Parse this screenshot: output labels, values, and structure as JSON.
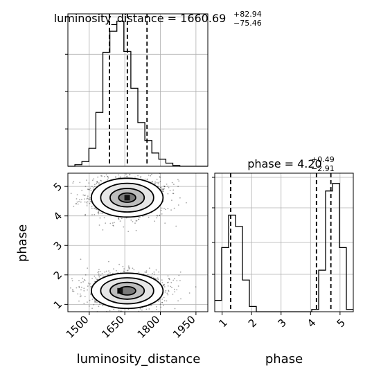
{
  "chart_data": [
    {
      "type": "histogram",
      "panel": "luminosity_distance-marginal",
      "title": {
        "prefix": "luminosity_distance = 1660.69",
        "upper": "+82.94",
        "lower": "−75.46"
      },
      "xlim": [
        1410,
        2000
      ],
      "bins": {
        "edges_start": 1410,
        "width": 29.5,
        "values": [
          0,
          2,
          6,
          23,
          69,
          146,
          173,
          186,
          147,
          100,
          56,
          33,
          17,
          9,
          4,
          1,
          0,
          0,
          0,
          0
        ]
      },
      "quantile_lines": [
        1585.2,
        1660.69,
        1743.6
      ],
      "grid": true
    },
    {
      "type": "scatter-density",
      "panel": "luminosity_distance-vs-phase",
      "xlabel": "luminosity_distance",
      "ylabel": "phase",
      "xlim": [
        1410,
        2000
      ],
      "ylim": [
        0.75,
        5.45
      ],
      "xticks": [
        "1500",
        "1650",
        "1800",
        "1950"
      ],
      "xtick_values": [
        1500,
        1650,
        1800,
        1950
      ],
      "yticks": [
        "1",
        "2",
        "3",
        "4",
        "5"
      ],
      "ytick_values": [
        1,
        2,
        3,
        4,
        5
      ],
      "modes": [
        {
          "x_center": 1660,
          "y_center": 4.62,
          "x_sd": 72,
          "y_sd": 0.33,
          "peak": [
            1660,
            4.62
          ]
        },
        {
          "x_center": 1660,
          "y_center": 1.46,
          "x_sd": 72,
          "y_sd": 0.3,
          "peak": [
            1630,
            1.46
          ]
        }
      ],
      "grid": true
    },
    {
      "type": "histogram",
      "panel": "phase-marginal",
      "title": {
        "prefix": "phase = 4.20",
        "upper": "+0.49",
        "lower": "−2.91"
      },
      "xlabel": "phase",
      "xlim": [
        0.75,
        5.45
      ],
      "xticks": [
        "1",
        "2",
        "3",
        "4",
        "5"
      ],
      "xtick_values": [
        1,
        2,
        3,
        4,
        5
      ],
      "bins": {
        "edges_start": 0.75,
        "width": 0.235,
        "values": [
          15,
          85,
          128,
          113,
          42,
          7,
          0,
          0,
          0,
          0,
          0,
          0,
          0,
          0,
          3,
          55,
          160,
          170,
          85,
          3
        ]
      },
      "quantile_lines": [
        1.29,
        4.2,
        4.69
      ],
      "grid": true
    }
  ]
}
